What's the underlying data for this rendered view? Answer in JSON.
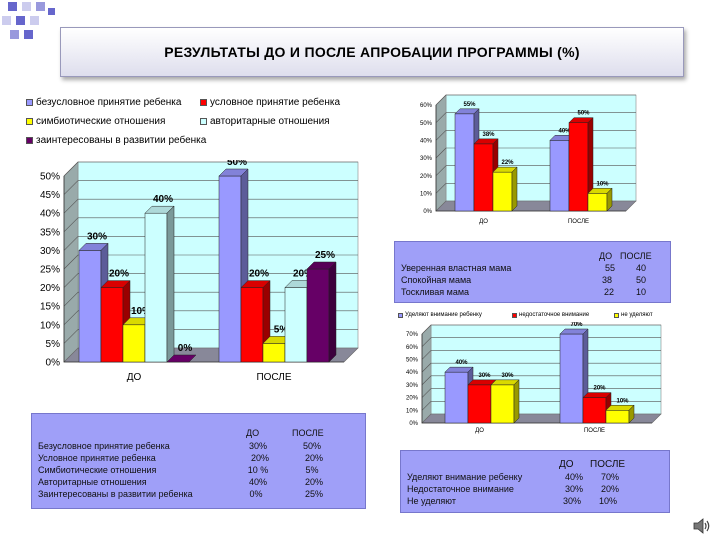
{
  "slide": {
    "title": "РЕЗУЛЬТАТЫ  ДО  И  ПОСЛЕ  АПРОБАЦИИ  ПРОГРАММЫ (%)"
  },
  "chart_data": [
    {
      "type": "bar",
      "categories": [
        "ДО",
        "ПОСЛЕ"
      ],
      "series": [
        {
          "name": "безусловное принятие ребенка",
          "values": [
            30,
            50
          ],
          "labels": [
            "30%",
            "50%"
          ],
          "color": "#9999ff"
        },
        {
          "name": "условное принятие ребенка",
          "values": [
            20,
            20
          ],
          "labels": [
            "20%",
            "20%"
          ],
          "color": "#ff0000"
        },
        {
          "name": "симбиотические отношения",
          "values": [
            10,
            5
          ],
          "labels": [
            "10%",
            "5%"
          ],
          "color": "#ffff00"
        },
        {
          "name": "авторитарные отношения",
          "values": [
            40,
            20
          ],
          "labels": [
            "40%",
            "20%"
          ],
          "color": "#ccffff"
        },
        {
          "name": "заинтересованы в развитии ребенка",
          "values": [
            0,
            25
          ],
          "labels": [
            "0%",
            "25%"
          ],
          "color": "#660066"
        }
      ],
      "yticks": [
        "0%",
        "5%",
        "10%",
        "15%",
        "20%",
        "25%",
        "30%",
        "35%",
        "40%",
        "45%",
        "50%"
      ],
      "ylim": [
        0,
        50
      ],
      "grid": true,
      "legend": "top"
    },
    {
      "type": "bar",
      "categories": [
        "ДО",
        "ПОСЛЕ"
      ],
      "series": [
        {
          "name": "Уверенная властная мама",
          "values": [
            55,
            40
          ],
          "labels": [
            "55%",
            "40%"
          ],
          "color": "#9999ff"
        },
        {
          "name": "Спокойная мама",
          "values": [
            38,
            50
          ],
          "labels": [
            "38%",
            "50%"
          ],
          "color": "#ff0000"
        },
        {
          "name": "Тоскливая мама",
          "values": [
            22,
            10
          ],
          "labels": [
            "22%",
            "10%"
          ],
          "color": "#ffff00"
        }
      ],
      "yticks": [
        "0%",
        "10%",
        "20%",
        "30%",
        "40%",
        "50%",
        "60%"
      ],
      "ylim": [
        0,
        60
      ],
      "grid": true
    },
    {
      "type": "bar",
      "categories": [
        "ДО",
        "ПОСЛЕ"
      ],
      "series": [
        {
          "name": "Уделяют  внимание ребенку",
          "values": [
            40,
            70
          ],
          "labels": [
            "40%",
            "70%"
          ],
          "color": "#9999ff"
        },
        {
          "name": "недостаточное внимание",
          "values": [
            30,
            20
          ],
          "labels": [
            "30%",
            "20%"
          ],
          "color": "#ff0000"
        },
        {
          "name": "не уделяют",
          "values": [
            30,
            10
          ],
          "labels": [
            "30%",
            "10%"
          ],
          "color": "#ffff00"
        }
      ],
      "yticks": [
        "0%",
        "10%",
        "20%",
        "30%",
        "40%",
        "50%",
        "60%",
        "70%"
      ],
      "ylim": [
        0,
        70
      ],
      "grid": true,
      "legend": "top"
    }
  ],
  "tables": {
    "t1": {
      "headers": [
        "ДО",
        "ПОСЛЕ"
      ],
      "rows": [
        {
          "label": "Безусловное принятие ребенка",
          "before": "30%",
          "after": "50%"
        },
        {
          "label": "Условное принятие ребенка",
          "before": "20%",
          "after": "20%"
        },
        {
          "label": "Симбиотические отношения",
          "before": "10 %",
          "after": "5%"
        },
        {
          "label": "Авторитарные отношения",
          "before": "40%",
          "after": "20%"
        },
        {
          "label": "Заинтересованы в развитии  ребенка",
          "before": "0%",
          "after": "25%"
        }
      ]
    },
    "t2": {
      "headers": [
        "ДО",
        "ПОСЛЕ"
      ],
      "rows": [
        {
          "label": "Уверенная властная мама",
          "before": "55",
          "after": "40"
        },
        {
          "label": "Спокойная мама",
          "before": "38",
          "after": "50"
        },
        {
          "label": "Тоскливая мама",
          "before": "22",
          "after": "10"
        }
      ]
    },
    "t3": {
      "headers": [
        "ДО",
        "ПОСЛЕ"
      ],
      "rows": [
        {
          "label": "Уделяют  внимание  ребенку",
          "before": "40%",
          "after": "70%"
        },
        {
          "label": "Недостаточное внимание",
          "before": "30%",
          "after": "20%"
        },
        {
          "label": "Не уделяют",
          "before": "30%",
          "after": "10%"
        }
      ]
    }
  },
  "icons": {
    "speaker": "speaker-icon"
  }
}
